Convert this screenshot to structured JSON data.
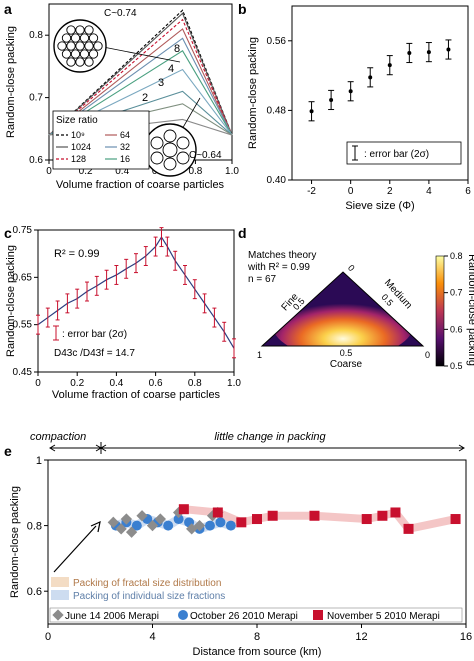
{
  "panels": {
    "a": {
      "letter": "a",
      "ylabel": "Random-close packing",
      "xlabel": "Volume fraction of coarse particles",
      "c_top": "C~0.74",
      "c_bottom": "C~0.64",
      "legend_title": "Size ratio",
      "legend_left": [
        "10⁹",
        "1024",
        "128"
      ],
      "legend_right": [
        "64",
        "32",
        "16"
      ],
      "curve_labels": [
        "8",
        "4",
        "3",
        "2"
      ],
      "xticks": [
        "0",
        "0.2",
        "0.4",
        "0.6",
        "0.8",
        "1.0"
      ],
      "yticks": [
        "0.6",
        "0.7",
        "0.8"
      ]
    },
    "b": {
      "letter": "b",
      "ylabel": "Random-close packing",
      "xlabel": "Sieve size (Φ)",
      "legend": ": error bar (2σ)",
      "xticks": [
        "-2",
        "0",
        "2",
        "4",
        "6"
      ],
      "yticks": [
        "0.40",
        "0.48",
        "0.56"
      ]
    },
    "c": {
      "letter": "c",
      "ylabel": "Random-close packing",
      "xlabel": "Volume fraction of coarse particles",
      "r2": "R² = 0.99",
      "legend": ": error bar (2σ)",
      "ratio": "D43c /D43f = 14.7",
      "xticks": [
        "0",
        "0.2",
        "0.4",
        "0.6",
        "0.8",
        "1.0"
      ],
      "yticks": [
        "0.45",
        "0.55",
        "0.65",
        "0.75"
      ]
    },
    "d": {
      "letter": "d",
      "text1": "Matches theory",
      "text2": "with R² = 0.99",
      "text3": "n = 67",
      "fine": "Fine",
      "medium": "Medium",
      "coarse": "Coarse",
      "tick_half": "0.5",
      "tick_zero": "0",
      "tick_one": "1",
      "colorbar_label": "Random-close packing",
      "colorbar_ticks": [
        "0.8",
        "0.7",
        "0.6",
        "0.5"
      ]
    },
    "e": {
      "letter": "e",
      "ylabel": "Random-close packing",
      "xlabel": "Distance from source (km)",
      "compaction": "compaction",
      "little_change": "little change in packing",
      "band1": "Packing of fractal size distribution",
      "band2": "Packing of individual size fractions",
      "legend": [
        "June 14 2006 Merapi",
        "October 26 2010 Merapi",
        "November 5 2010 Merapi"
      ],
      "xticks": [
        "0",
        "4",
        "8",
        "12",
        "16"
      ],
      "yticks": [
        "0.6",
        "0.8",
        "1"
      ]
    }
  },
  "colors": {
    "red": "#c8102e",
    "blue": "#3a7fd0",
    "gray": "#8c8c8c",
    "band_orange": "#f3dcc4",
    "band_blue": "#cddcf0"
  },
  "chart_data": [
    {
      "panel": "a",
      "type": "line",
      "xlabel": "Volume fraction of coarse particles",
      "ylabel": "Random-close packing",
      "xlim": [
        0,
        1
      ],
      "ylim": [
        0.6,
        0.85
      ],
      "series": [
        {
          "name": "10⁹",
          "x": [
            0,
            0.73,
            1
          ],
          "y": [
            0.64,
            0.84,
            0.64
          ]
        },
        {
          "name": "1024",
          "x": [
            0,
            0.73,
            1
          ],
          "y": [
            0.64,
            0.835,
            0.64
          ]
        },
        {
          "name": "128",
          "x": [
            0,
            0.73,
            1
          ],
          "y": [
            0.64,
            0.825,
            0.64
          ]
        },
        {
          "name": "64",
          "x": [
            0,
            0.73,
            1
          ],
          "y": [
            0.64,
            0.81,
            0.64
          ]
        },
        {
          "name": "32",
          "x": [
            0,
            0.73,
            1
          ],
          "y": [
            0.64,
            0.795,
            0.64
          ]
        },
        {
          "name": "16",
          "x": [
            0,
            0.73,
            1
          ],
          "y": [
            0.64,
            0.775,
            0.64
          ]
        },
        {
          "name": "8",
          "x": [
            0,
            0.73,
            1
          ],
          "y": [
            0.64,
            0.745,
            0.64
          ]
        },
        {
          "name": "4",
          "x": [
            0,
            0.73,
            1
          ],
          "y": [
            0.64,
            0.71,
            0.64
          ]
        },
        {
          "name": "3",
          "x": [
            0,
            0.73,
            1
          ],
          "y": [
            0.64,
            0.69,
            0.64
          ]
        },
        {
          "name": "2",
          "x": [
            0,
            0.73,
            1
          ],
          "y": [
            0.64,
            0.665,
            0.64
          ]
        }
      ]
    },
    {
      "panel": "b",
      "type": "scatter",
      "xlabel": "Sieve size (Φ)",
      "ylabel": "Random-close packing",
      "xlim": [
        -3,
        6
      ],
      "ylim": [
        0.4,
        0.6
      ],
      "x": [
        -2,
        -1,
        0,
        1,
        2,
        3,
        4,
        5
      ],
      "y": [
        0.479,
        0.492,
        0.502,
        0.518,
        0.532,
        0.546,
        0.547,
        0.55
      ],
      "error": [
        0.011,
        0.011,
        0.011,
        0.011,
        0.011,
        0.011,
        0.011,
        0.011
      ]
    },
    {
      "panel": "c",
      "type": "line",
      "xlabel": "Volume fraction of coarse particles",
      "ylabel": "Random-close packing",
      "xlim": [
        0,
        1
      ],
      "ylim": [
        0.45,
        0.75
      ],
      "x": [
        0,
        0.05,
        0.1,
        0.15,
        0.2,
        0.25,
        0.3,
        0.35,
        0.4,
        0.45,
        0.5,
        0.55,
        0.6,
        0.63,
        0.66,
        0.7,
        0.75,
        0.8,
        0.85,
        0.9,
        0.95,
        1.0
      ],
      "y": [
        0.55,
        0.565,
        0.58,
        0.595,
        0.605,
        0.62,
        0.632,
        0.645,
        0.655,
        0.668,
        0.68,
        0.695,
        0.715,
        0.735,
        0.715,
        0.685,
        0.655,
        0.625,
        0.595,
        0.565,
        0.535,
        0.5
      ],
      "error": [
        0.02,
        0.02,
        0.02,
        0.02,
        0.02,
        0.02,
        0.02,
        0.02,
        0.02,
        0.02,
        0.02,
        0.02,
        0.02,
        0.02,
        0.02,
        0.02,
        0.02,
        0.02,
        0.02,
        0.02,
        0.02,
        0.02
      ]
    },
    {
      "panel": "d",
      "type": "heatmap",
      "axes": [
        "Fine",
        "Medium",
        "Coarse"
      ],
      "colorbar_range": [
        0.5,
        0.8
      ]
    },
    {
      "panel": "e",
      "type": "scatter",
      "xlabel": "Distance from source (km)",
      "ylabel": "Random-close packing",
      "xlim": [
        0,
        16
      ],
      "ylim": [
        0.5,
        1.0
      ],
      "series": [
        {
          "name": "June 14 2006 Merapi",
          "x": [
            2.5,
            2.8,
            3.0,
            3.2,
            3.6,
            4.0,
            4.3,
            5.0,
            5.5,
            5.8,
            6.3,
            6.5
          ],
          "y": [
            0.81,
            0.79,
            0.82,
            0.78,
            0.83,
            0.8,
            0.82,
            0.84,
            0.79,
            0.8,
            0.83,
            0.84
          ]
        },
        {
          "name": "October 26 2010 Merapi",
          "x": [
            2.6,
            3.0,
            3.4,
            3.8,
            4.2,
            4.6,
            5.0,
            5.4,
            5.8,
            6.2,
            6.6,
            7.0
          ],
          "y": [
            0.8,
            0.81,
            0.8,
            0.82,
            0.81,
            0.8,
            0.82,
            0.81,
            0.79,
            0.8,
            0.81,
            0.8
          ]
        },
        {
          "name": "November 5 2010 Merapi",
          "x": [
            5.2,
            6.5,
            7.4,
            8.0,
            8.6,
            10.2,
            12.2,
            12.8,
            13.3,
            13.8,
            15.6
          ],
          "y": [
            0.85,
            0.84,
            0.81,
            0.82,
            0.83,
            0.83,
            0.82,
            0.83,
            0.84,
            0.79,
            0.82
          ]
        }
      ]
    }
  ]
}
